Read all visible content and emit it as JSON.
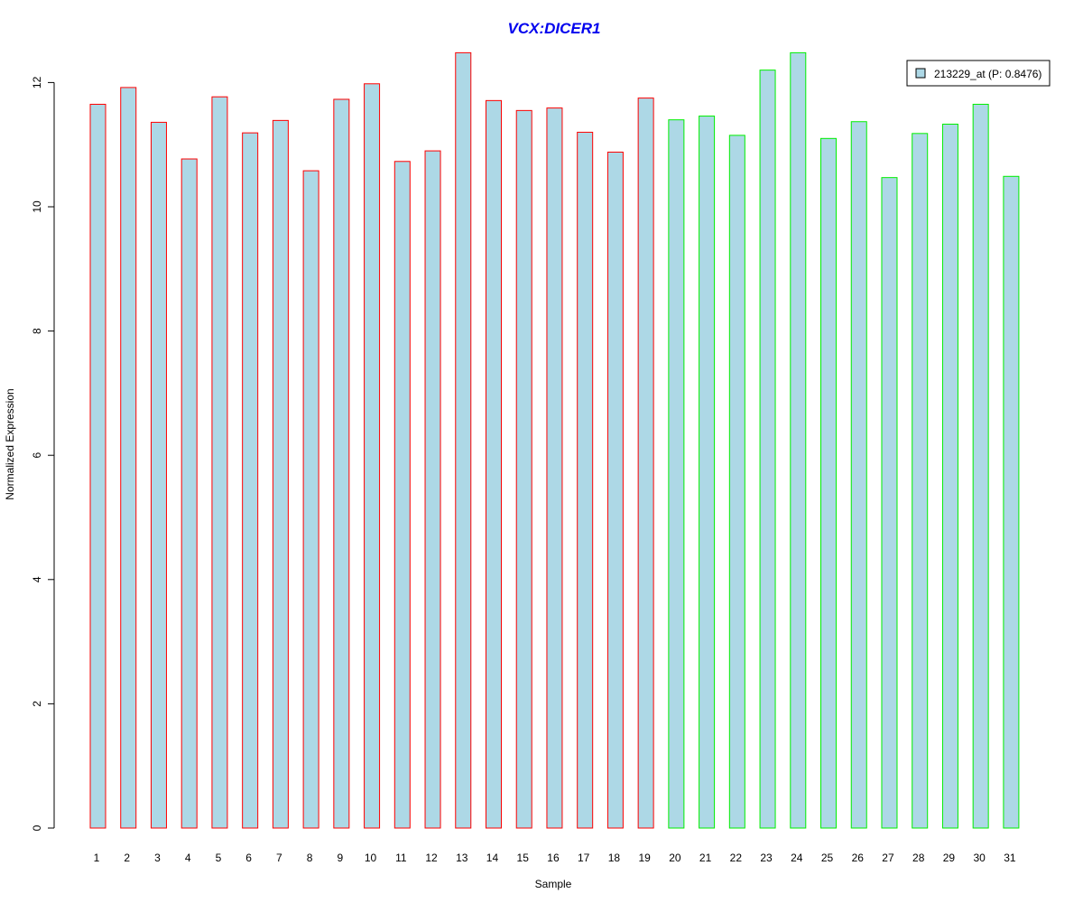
{
  "chart_data": {
    "type": "bar",
    "title": "VCX:DICER1",
    "xlabel": "Sample",
    "ylabel": "Normalized Expression",
    "categories": [
      "1",
      "2",
      "3",
      "4",
      "5",
      "6",
      "7",
      "8",
      "9",
      "10",
      "11",
      "12",
      "13",
      "14",
      "15",
      "16",
      "17",
      "18",
      "19",
      "20",
      "21",
      "22",
      "23",
      "24",
      "25",
      "26",
      "27",
      "28",
      "29",
      "30",
      "31"
    ],
    "series": [
      {
        "name": "213229_at (P: 0.8476)",
        "values": [
          11.65,
          11.92,
          11.36,
          10.77,
          11.77,
          11.19,
          11.39,
          10.58,
          11.73,
          11.98,
          10.73,
          10.9,
          12.48,
          11.71,
          11.55,
          11.59,
          11.2,
          10.88,
          11.75,
          11.4,
          11.46,
          11.15,
          12.2,
          12.48,
          11.1,
          11.37,
          10.47,
          11.18,
          11.33,
          11.65,
          10.49
        ]
      }
    ],
    "group_border_colors": [
      "#ff0000",
      "#ff0000",
      "#ff0000",
      "#ff0000",
      "#ff0000",
      "#ff0000",
      "#ff0000",
      "#ff0000",
      "#ff0000",
      "#ff0000",
      "#ff0000",
      "#ff0000",
      "#ff0000",
      "#ff0000",
      "#ff0000",
      "#ff0000",
      "#ff0000",
      "#ff0000",
      "#ff0000",
      "#00ee00",
      "#00ee00",
      "#00ee00",
      "#00ee00",
      "#00ee00",
      "#00ee00",
      "#00ee00",
      "#00ee00",
      "#00ee00",
      "#00ee00",
      "#00ee00",
      "#00ee00"
    ],
    "yticks": [
      0,
      2,
      4,
      6,
      8,
      10,
      12
    ],
    "ylim": [
      0,
      12.5
    ],
    "grid": false,
    "legend_position": "top-right",
    "colors": {
      "bar_fill": "#add8e6",
      "title": "#0000ee",
      "axis": "#000000"
    }
  }
}
